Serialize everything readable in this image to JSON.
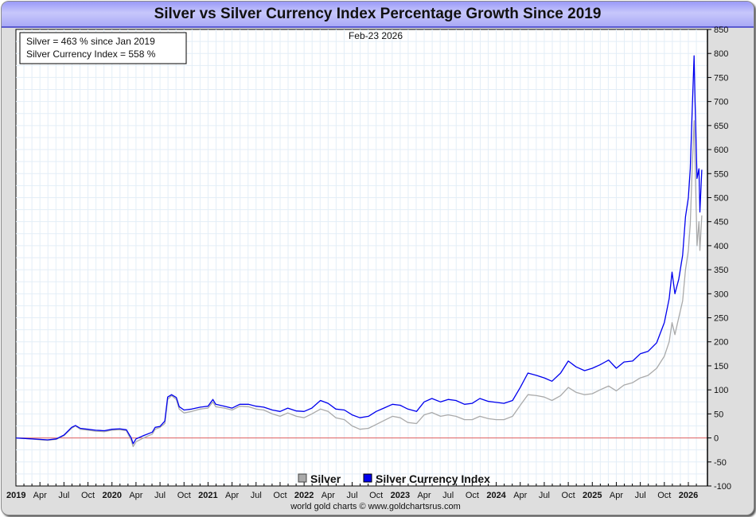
{
  "chart_data": {
    "type": "line",
    "title": "Silver vs Silver Currency Index Percentage Growth Since 2019",
    "date_label": "Feb-23  2026",
    "info_box": [
      "Silver = 463 % since Jan 2019",
      "Silver Currency Index = 558 %"
    ],
    "credit": "world gold charts © www.goldchartsrus.com",
    "xlabel": "",
    "ylabel": "",
    "x_range": [
      2019.0,
      2026.15
    ],
    "ylim": [
      -100,
      850
    ],
    "y_ticks": [
      850,
      800,
      750,
      700,
      650,
      600,
      550,
      500,
      450,
      400,
      350,
      300,
      250,
      200,
      150,
      100,
      50,
      0,
      -50,
      -100
    ],
    "x_ticks": [
      {
        "label": "2019",
        "t": 2019.0,
        "year": true
      },
      {
        "label": "Apr",
        "t": 2019.25,
        "year": false
      },
      {
        "label": "Jul",
        "t": 2019.5,
        "year": false
      },
      {
        "label": "Oct",
        "t": 2019.75,
        "year": false
      },
      {
        "label": "2020",
        "t": 2020.0,
        "year": true
      },
      {
        "label": "Apr",
        "t": 2020.25,
        "year": false
      },
      {
        "label": "Jul",
        "t": 2020.5,
        "year": false
      },
      {
        "label": "Oct",
        "t": 2020.75,
        "year": false
      },
      {
        "label": "2021",
        "t": 2021.0,
        "year": true
      },
      {
        "label": "Apr",
        "t": 2021.25,
        "year": false
      },
      {
        "label": "Jul",
        "t": 2021.5,
        "year": false
      },
      {
        "label": "Oct",
        "t": 2021.75,
        "year": false
      },
      {
        "label": "2022",
        "t": 2022.0,
        "year": true
      },
      {
        "label": "Apr",
        "t": 2022.25,
        "year": false
      },
      {
        "label": "Jul",
        "t": 2022.5,
        "year": false
      },
      {
        "label": "Oct",
        "t": 2022.75,
        "year": false
      },
      {
        "label": "2023",
        "t": 2023.0,
        "year": true
      },
      {
        "label": "Apr",
        "t": 2023.25,
        "year": false
      },
      {
        "label": "Jul",
        "t": 2023.5,
        "year": false
      },
      {
        "label": "Oct",
        "t": 2023.75,
        "year": false
      },
      {
        "label": "2024",
        "t": 2024.0,
        "year": true
      },
      {
        "label": "Apr",
        "t": 2024.25,
        "year": false
      },
      {
        "label": "Jul",
        "t": 2024.5,
        "year": false
      },
      {
        "label": "Oct",
        "t": 2024.75,
        "year": false
      },
      {
        "label": "2025",
        "t": 2025.0,
        "year": true
      },
      {
        "label": "Apr",
        "t": 2025.25,
        "year": false
      },
      {
        "label": "Jul",
        "t": 2025.5,
        "year": false
      },
      {
        "label": "Oct",
        "t": 2025.75,
        "year": false
      },
      {
        "label": "2026",
        "t": 2026.0,
        "year": true
      }
    ],
    "grid": true,
    "reference_line": {
      "value": 0,
      "color": "#e06060"
    },
    "legend": {
      "placement": "bottom-center",
      "entries": [
        {
          "name": "Silver",
          "color": "#aaaaaa"
        },
        {
          "name": "Silver Currency Index",
          "color": "#0000ee"
        }
      ]
    },
    "series": [
      {
        "name": "Silver",
        "color": "#aaaaaa",
        "points": [
          [
            2019.0,
            0
          ],
          [
            2019.08,
            -1
          ],
          [
            2019.17,
            -2
          ],
          [
            2019.25,
            -4
          ],
          [
            2019.33,
            -5
          ],
          [
            2019.42,
            -3
          ],
          [
            2019.5,
            5
          ],
          [
            2019.58,
            20
          ],
          [
            2019.62,
            25
          ],
          [
            2019.67,
            18
          ],
          [
            2019.75,
            16
          ],
          [
            2019.83,
            14
          ],
          [
            2019.92,
            13
          ],
          [
            2020.0,
            16
          ],
          [
            2020.08,
            17
          ],
          [
            2020.15,
            15
          ],
          [
            2020.2,
            -5
          ],
          [
            2020.22,
            -18
          ],
          [
            2020.25,
            -8
          ],
          [
            2020.33,
            0
          ],
          [
            2020.42,
            8
          ],
          [
            2020.45,
            18
          ],
          [
            2020.5,
            22
          ],
          [
            2020.55,
            30
          ],
          [
            2020.58,
            80
          ],
          [
            2020.62,
            88
          ],
          [
            2020.67,
            80
          ],
          [
            2020.7,
            60
          ],
          [
            2020.75,
            52
          ],
          [
            2020.83,
            55
          ],
          [
            2020.92,
            60
          ],
          [
            2021.0,
            62
          ],
          [
            2021.05,
            75
          ],
          [
            2021.08,
            65
          ],
          [
            2021.17,
            62
          ],
          [
            2021.25,
            58
          ],
          [
            2021.33,
            66
          ],
          [
            2021.42,
            65
          ],
          [
            2021.5,
            60
          ],
          [
            2021.58,
            58
          ],
          [
            2021.67,
            50
          ],
          [
            2021.75,
            45
          ],
          [
            2021.83,
            52
          ],
          [
            2021.92,
            45
          ],
          [
            2022.0,
            42
          ],
          [
            2022.08,
            50
          ],
          [
            2022.17,
            60
          ],
          [
            2022.25,
            55
          ],
          [
            2022.33,
            42
          ],
          [
            2022.42,
            38
          ],
          [
            2022.5,
            25
          ],
          [
            2022.58,
            18
          ],
          [
            2022.67,
            20
          ],
          [
            2022.75,
            28
          ],
          [
            2022.83,
            36
          ],
          [
            2022.92,
            45
          ],
          [
            2023.0,
            42
          ],
          [
            2023.08,
            32
          ],
          [
            2023.17,
            30
          ],
          [
            2023.25,
            48
          ],
          [
            2023.33,
            53
          ],
          [
            2023.42,
            45
          ],
          [
            2023.5,
            48
          ],
          [
            2023.58,
            45
          ],
          [
            2023.67,
            38
          ],
          [
            2023.75,
            38
          ],
          [
            2023.83,
            45
          ],
          [
            2023.92,
            40
          ],
          [
            2024.0,
            38
          ],
          [
            2024.08,
            38
          ],
          [
            2024.17,
            45
          ],
          [
            2024.25,
            68
          ],
          [
            2024.33,
            90
          ],
          [
            2024.42,
            88
          ],
          [
            2024.5,
            85
          ],
          [
            2024.58,
            78
          ],
          [
            2024.67,
            88
          ],
          [
            2024.75,
            105
          ],
          [
            2024.83,
            95
          ],
          [
            2024.92,
            90
          ],
          [
            2025.0,
            92
          ],
          [
            2025.08,
            100
          ],
          [
            2025.17,
            108
          ],
          [
            2025.25,
            98
          ],
          [
            2025.33,
            110
          ],
          [
            2025.42,
            115
          ],
          [
            2025.5,
            125
          ],
          [
            2025.58,
            130
          ],
          [
            2025.67,
            145
          ],
          [
            2025.75,
            170
          ],
          [
            2025.8,
            200
          ],
          [
            2025.83,
            240
          ],
          [
            2025.86,
            215
          ],
          [
            2025.9,
            250
          ],
          [
            2025.94,
            285
          ],
          [
            2025.97,
            350
          ],
          [
            2026.0,
            390
          ],
          [
            2026.02,
            445
          ],
          [
            2026.04,
            560
          ],
          [
            2026.06,
            660
          ],
          [
            2026.07,
            580
          ],
          [
            2026.09,
            400
          ],
          [
            2026.11,
            450
          ],
          [
            2026.12,
            390
          ],
          [
            2026.14,
            463
          ]
        ]
      },
      {
        "name": "Silver Currency Index",
        "color": "#0000ee",
        "points": [
          [
            2019.0,
            0
          ],
          [
            2019.08,
            -1
          ],
          [
            2019.17,
            -2
          ],
          [
            2019.25,
            -3
          ],
          [
            2019.33,
            -4
          ],
          [
            2019.42,
            -2
          ],
          [
            2019.5,
            6
          ],
          [
            2019.58,
            22
          ],
          [
            2019.62,
            26
          ],
          [
            2019.67,
            20
          ],
          [
            2019.75,
            18
          ],
          [
            2019.83,
            16
          ],
          [
            2019.92,
            15
          ],
          [
            2020.0,
            18
          ],
          [
            2020.08,
            19
          ],
          [
            2020.15,
            17
          ],
          [
            2020.2,
            0
          ],
          [
            2020.22,
            -12
          ],
          [
            2020.25,
            -2
          ],
          [
            2020.33,
            5
          ],
          [
            2020.42,
            12
          ],
          [
            2020.45,
            22
          ],
          [
            2020.5,
            24
          ],
          [
            2020.55,
            35
          ],
          [
            2020.58,
            85
          ],
          [
            2020.62,
            90
          ],
          [
            2020.67,
            84
          ],
          [
            2020.7,
            65
          ],
          [
            2020.75,
            58
          ],
          [
            2020.83,
            60
          ],
          [
            2020.92,
            64
          ],
          [
            2021.0,
            66
          ],
          [
            2021.05,
            80
          ],
          [
            2021.08,
            70
          ],
          [
            2021.17,
            66
          ],
          [
            2021.25,
            62
          ],
          [
            2021.33,
            70
          ],
          [
            2021.42,
            70
          ],
          [
            2021.5,
            66
          ],
          [
            2021.58,
            64
          ],
          [
            2021.67,
            58
          ],
          [
            2021.75,
            55
          ],
          [
            2021.83,
            62
          ],
          [
            2021.92,
            56
          ],
          [
            2022.0,
            55
          ],
          [
            2022.08,
            62
          ],
          [
            2022.17,
            78
          ],
          [
            2022.25,
            72
          ],
          [
            2022.33,
            60
          ],
          [
            2022.42,
            58
          ],
          [
            2022.5,
            48
          ],
          [
            2022.58,
            42
          ],
          [
            2022.67,
            45
          ],
          [
            2022.75,
            55
          ],
          [
            2022.83,
            62
          ],
          [
            2022.92,
            70
          ],
          [
            2023.0,
            68
          ],
          [
            2023.08,
            60
          ],
          [
            2023.17,
            55
          ],
          [
            2023.25,
            75
          ],
          [
            2023.33,
            82
          ],
          [
            2023.42,
            75
          ],
          [
            2023.5,
            80
          ],
          [
            2023.58,
            78
          ],
          [
            2023.67,
            70
          ],
          [
            2023.75,
            72
          ],
          [
            2023.83,
            82
          ],
          [
            2023.92,
            76
          ],
          [
            2024.0,
            74
          ],
          [
            2024.08,
            72
          ],
          [
            2024.17,
            78
          ],
          [
            2024.25,
            105
          ],
          [
            2024.33,
            135
          ],
          [
            2024.42,
            130
          ],
          [
            2024.5,
            125
          ],
          [
            2024.58,
            118
          ],
          [
            2024.67,
            135
          ],
          [
            2024.75,
            160
          ],
          [
            2024.83,
            148
          ],
          [
            2024.92,
            140
          ],
          [
            2025.0,
            145
          ],
          [
            2025.08,
            152
          ],
          [
            2025.17,
            162
          ],
          [
            2025.25,
            145
          ],
          [
            2025.33,
            158
          ],
          [
            2025.42,
            160
          ],
          [
            2025.5,
            175
          ],
          [
            2025.58,
            180
          ],
          [
            2025.67,
            198
          ],
          [
            2025.75,
            240
          ],
          [
            2025.8,
            290
          ],
          [
            2025.83,
            345
          ],
          [
            2025.86,
            300
          ],
          [
            2025.9,
            330
          ],
          [
            2025.94,
            380
          ],
          [
            2025.97,
            460
          ],
          [
            2026.0,
            500
          ],
          [
            2026.02,
            560
          ],
          [
            2026.04,
            680
          ],
          [
            2026.06,
            795
          ],
          [
            2026.07,
            700
          ],
          [
            2026.09,
            540
          ],
          [
            2026.11,
            560
          ],
          [
            2026.12,
            470
          ],
          [
            2026.14,
            558
          ]
        ]
      }
    ]
  }
}
